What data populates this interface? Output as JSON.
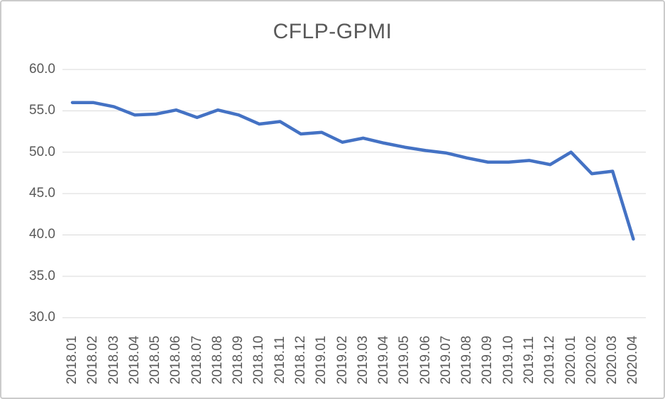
{
  "chart_data": {
    "type": "line",
    "title": "CFLP-GPMI",
    "series_name": "CFLP-GPMI",
    "categories": [
      "2018.01",
      "2018.02",
      "2018.03",
      "2018.04",
      "2018.05",
      "2018.06",
      "2018.07",
      "2018.08",
      "2018.09",
      "2018.10",
      "2018.11",
      "2018.12",
      "2019.01",
      "2019.02",
      "2019.03",
      "2019.04",
      "2019.05",
      "2019.06",
      "2019.07",
      "2019.08",
      "2019.09",
      "2019.10",
      "2019.11",
      "2019.12",
      "2020.01",
      "2020.02",
      "2020.03",
      "2020.04"
    ],
    "values": [
      56.0,
      56.0,
      55.5,
      54.5,
      54.6,
      55.1,
      54.2,
      55.1,
      54.5,
      53.4,
      53.7,
      52.2,
      52.4,
      51.2,
      51.7,
      51.1,
      50.6,
      50.2,
      49.9,
      49.3,
      48.8,
      48.8,
      49.0,
      48.5,
      50.0,
      47.4,
      47.7,
      39.5
    ],
    "xlabel": "",
    "ylabel": "",
    "ylim": [
      30,
      60
    ],
    "ytick_step": 5,
    "ytick_labels": [
      "60.0",
      "55.0",
      "50.0",
      "45.0",
      "40.0",
      "35.0",
      "30.0"
    ],
    "grid": true,
    "legend_position": "none",
    "colors": {
      "line": "#4472C4",
      "gridline": "#D9D9D9",
      "axis_label": "#595959",
      "title": "#595959",
      "background": "#FFFFFF",
      "border": "#CBCBCB"
    }
  }
}
